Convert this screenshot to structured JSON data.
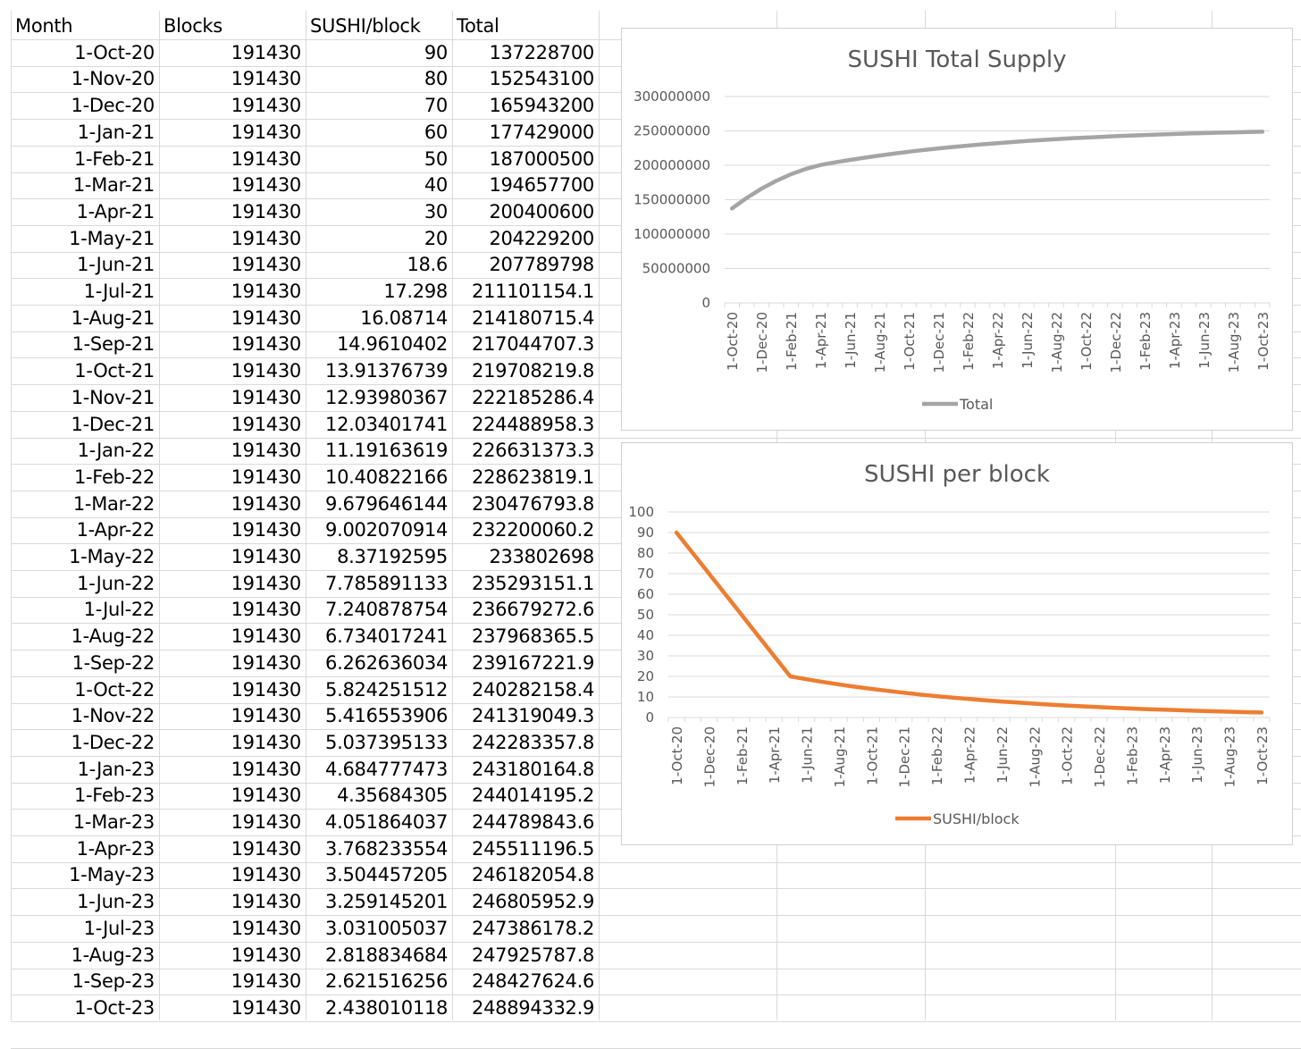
{
  "table": {
    "headers": [
      "Month",
      "Blocks",
      "SUSHI/block",
      "Total"
    ],
    "rows": [
      [
        "1-Oct-20",
        "191430",
        "90",
        "137228700"
      ],
      [
        "1-Nov-20",
        "191430",
        "80",
        "152543100"
      ],
      [
        "1-Dec-20",
        "191430",
        "70",
        "165943200"
      ],
      [
        "1-Jan-21",
        "191430",
        "60",
        "177429000"
      ],
      [
        "1-Feb-21",
        "191430",
        "50",
        "187000500"
      ],
      [
        "1-Mar-21",
        "191430",
        "40",
        "194657700"
      ],
      [
        "1-Apr-21",
        "191430",
        "30",
        "200400600"
      ],
      [
        "1-May-21",
        "191430",
        "20",
        "204229200"
      ],
      [
        "1-Jun-21",
        "191430",
        "18.6",
        "207789798"
      ],
      [
        "1-Jul-21",
        "191430",
        "17.298",
        "211101154.1"
      ],
      [
        "1-Aug-21",
        "191430",
        "16.08714",
        "214180715.4"
      ],
      [
        "1-Sep-21",
        "191430",
        "14.9610402",
        "217044707.3"
      ],
      [
        "1-Oct-21",
        "191430",
        "13.91376739",
        "219708219.8"
      ],
      [
        "1-Nov-21",
        "191430",
        "12.93980367",
        "222185286.4"
      ],
      [
        "1-Dec-21",
        "191430",
        "12.03401741",
        "224488958.3"
      ],
      [
        "1-Jan-22",
        "191430",
        "11.19163619",
        "226631373.3"
      ],
      [
        "1-Feb-22",
        "191430",
        "10.40822166",
        "228623819.1"
      ],
      [
        "1-Mar-22",
        "191430",
        "9.679646144",
        "230476793.8"
      ],
      [
        "1-Apr-22",
        "191430",
        "9.002070914",
        "232200060.2"
      ],
      [
        "1-May-22",
        "191430",
        "8.37192595",
        "233802698"
      ],
      [
        "1-Jun-22",
        "191430",
        "7.785891133",
        "235293151.1"
      ],
      [
        "1-Jul-22",
        "191430",
        "7.240878754",
        "236679272.6"
      ],
      [
        "1-Aug-22",
        "191430",
        "6.734017241",
        "237968365.5"
      ],
      [
        "1-Sep-22",
        "191430",
        "6.262636034",
        "239167221.9"
      ],
      [
        "1-Oct-22",
        "191430",
        "5.824251512",
        "240282158.4"
      ],
      [
        "1-Nov-22",
        "191430",
        "5.416553906",
        "241319049.3"
      ],
      [
        "1-Dec-22",
        "191430",
        "5.037395133",
        "242283357.8"
      ],
      [
        "1-Jan-23",
        "191430",
        "4.684777473",
        "243180164.8"
      ],
      [
        "1-Feb-23",
        "191430",
        "4.35684305",
        "244014195.2"
      ],
      [
        "1-Mar-23",
        "191430",
        "4.051864037",
        "244789843.6"
      ],
      [
        "1-Apr-23",
        "191430",
        "3.768233554",
        "245511196.5"
      ],
      [
        "1-May-23",
        "191430",
        "3.504457205",
        "246182054.8"
      ],
      [
        "1-Jun-23",
        "191430",
        "3.259145201",
        "246805952.9"
      ],
      [
        "1-Jul-23",
        "191430",
        "3.031005037",
        "247386178.2"
      ],
      [
        "1-Aug-23",
        "191430",
        "2.818834684",
        "247925787.8"
      ],
      [
        "1-Sep-23",
        "191430",
        "2.621516256",
        "248427624.6"
      ],
      [
        "1-Oct-23",
        "191430",
        "2.438010118",
        "248894332.9"
      ]
    ]
  },
  "colors": {
    "gridline": "#d9d9d9",
    "total_series": "#a5a5a5",
    "sushi_series": "#ed7d31",
    "axis_text": "#595959"
  },
  "chart_data": [
    {
      "type": "line",
      "title": "SUSHI Total Supply",
      "xlabel": "",
      "ylabel": "",
      "x": [
        "1-Oct-20",
        "1-Nov-20",
        "1-Dec-20",
        "1-Jan-21",
        "1-Feb-21",
        "1-Mar-21",
        "1-Apr-21",
        "1-May-21",
        "1-Jun-21",
        "1-Jul-21",
        "1-Aug-21",
        "1-Sep-21",
        "1-Oct-21",
        "1-Nov-21",
        "1-Dec-21",
        "1-Jan-22",
        "1-Feb-22",
        "1-Mar-22",
        "1-Apr-22",
        "1-May-22",
        "1-Jun-22",
        "1-Jul-22",
        "1-Aug-22",
        "1-Sep-22",
        "1-Oct-22",
        "1-Nov-22",
        "1-Dec-22",
        "1-Jan-23",
        "1-Feb-23",
        "1-Mar-23",
        "1-Apr-23",
        "1-May-23",
        "1-Jun-23",
        "1-Jul-23",
        "1-Aug-23",
        "1-Sep-23",
        "1-Oct-23"
      ],
      "x_tick_labels": [
        "1-Oct-20",
        "1-Dec-20",
        "1-Feb-21",
        "1-Apr-21",
        "1-Jun-21",
        "1-Aug-21",
        "1-Oct-21",
        "1-Dec-21",
        "1-Feb-22",
        "1-Apr-22",
        "1-Jun-22",
        "1-Aug-22",
        "1-Oct-22",
        "1-Dec-22",
        "1-Feb-23",
        "1-Apr-23",
        "1-Jun-23",
        "1-Aug-23",
        "1-Oct-23"
      ],
      "y_tick_labels": [
        "0",
        "50000000",
        "100000000",
        "150000000",
        "200000000",
        "250000000",
        "300000000"
      ],
      "ylim": [
        0,
        300000000
      ],
      "grid": true,
      "legend": "bottom",
      "series": [
        {
          "name": "Total",
          "color": "#a5a5a5",
          "values": [
            137228700,
            152543100,
            165943200,
            177429000,
            187000500,
            194657700,
            200400600,
            204229200,
            207789798,
            211101154.1,
            214180715.4,
            217044707.3,
            219708219.8,
            222185286.4,
            224488958.3,
            226631373.3,
            228623819.1,
            230476793.8,
            232200060.2,
            233802698,
            235293151.1,
            236679272.6,
            237968365.5,
            239167221.9,
            240282158.4,
            241319049.3,
            242283357.8,
            243180164.8,
            244014195.2,
            244789843.6,
            245511196.5,
            246182054.8,
            246805952.9,
            247386178.2,
            247925787.8,
            248427624.6,
            248894332.9
          ]
        }
      ]
    },
    {
      "type": "line",
      "title": "SUSHI per block",
      "xlabel": "",
      "ylabel": "",
      "x": [
        "1-Oct-20",
        "1-Nov-20",
        "1-Dec-20",
        "1-Jan-21",
        "1-Feb-21",
        "1-Mar-21",
        "1-Apr-21",
        "1-May-21",
        "1-Jun-21",
        "1-Jul-21",
        "1-Aug-21",
        "1-Sep-21",
        "1-Oct-21",
        "1-Nov-21",
        "1-Dec-21",
        "1-Jan-22",
        "1-Feb-22",
        "1-Mar-22",
        "1-Apr-22",
        "1-May-22",
        "1-Jun-22",
        "1-Jul-22",
        "1-Aug-22",
        "1-Sep-22",
        "1-Oct-22",
        "1-Nov-22",
        "1-Dec-22",
        "1-Jan-23",
        "1-Feb-23",
        "1-Mar-23",
        "1-Apr-23",
        "1-May-23",
        "1-Jun-23",
        "1-Jul-23",
        "1-Aug-23",
        "1-Sep-23",
        "1-Oct-23"
      ],
      "x_tick_labels": [
        "1-Oct-20",
        "1-Dec-20",
        "1-Feb-21",
        "1-Apr-21",
        "1-Jun-21",
        "1-Aug-21",
        "1-Oct-21",
        "1-Dec-21",
        "1-Feb-22",
        "1-Apr-22",
        "1-Jun-22",
        "1-Aug-22",
        "1-Oct-22",
        "1-Dec-22",
        "1-Feb-23",
        "1-Apr-23",
        "1-Jun-23",
        "1-Aug-23",
        "1-Oct-23"
      ],
      "y_tick_labels": [
        "0",
        "10",
        "20",
        "30",
        "40",
        "50",
        "60",
        "70",
        "80",
        "90",
        "100"
      ],
      "ylim": [
        0,
        100
      ],
      "grid": true,
      "legend": "bottom",
      "series": [
        {
          "name": "SUSHI/block",
          "color": "#ed7d31",
          "values": [
            90,
            80,
            70,
            60,
            50,
            40,
            30,
            20,
            18.6,
            17.298,
            16.08714,
            14.9610402,
            13.91376739,
            12.93980367,
            12.03401741,
            11.19163619,
            10.40822166,
            9.679646144,
            9.002070914,
            8.37192595,
            7.785891133,
            7.240878754,
            6.734017241,
            6.262636034,
            5.824251512,
            5.416553906,
            5.037395133,
            4.684777473,
            4.35684305,
            4.051864037,
            3.768233554,
            3.504457205,
            3.259145201,
            3.031005037,
            2.818834684,
            2.621516256,
            2.438010118
          ]
        }
      ]
    }
  ]
}
